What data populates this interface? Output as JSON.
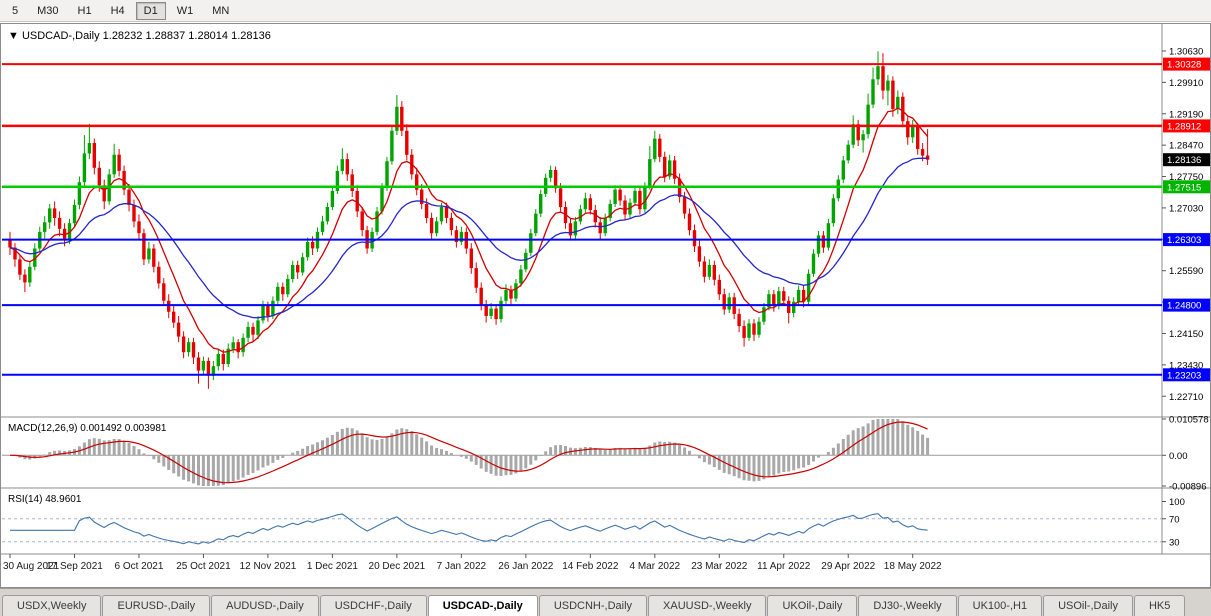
{
  "window": {
    "dropdown_glyph": "▼",
    "title_symbol": "USDCAD-,Daily",
    "title_ohlc": "1.28232 1.28837 1.28014 1.28136"
  },
  "toolbar": {
    "timeframes": [
      {
        "label": "5"
      },
      {
        "label": "M30"
      },
      {
        "label": "H1"
      },
      {
        "label": "H4"
      },
      {
        "label": "D1",
        "active": true
      },
      {
        "label": "W1"
      },
      {
        "label": "MN"
      }
    ]
  },
  "tabs": {
    "items": [
      {
        "label": "USDX,Weekly"
      },
      {
        "label": "EURUSD-,Daily"
      },
      {
        "label": "AUDUSD-,Daily"
      },
      {
        "label": "USDCHF-,Daily"
      },
      {
        "label": "USDCAD-,Daily",
        "active": true
      },
      {
        "label": "USDCNH-,Daily"
      },
      {
        "label": "XAUUSD-,Weekly"
      },
      {
        "label": "UKOil-,Daily"
      },
      {
        "label": "DJ30-,Weekly"
      },
      {
        "label": "UK100-,H1"
      },
      {
        "label": "USOil-,Daily"
      },
      {
        "label": "HK5"
      }
    ]
  },
  "chart_data": {
    "type": "candlestick",
    "symbol": "USDCAD-,Daily",
    "last_ohlc": {
      "open": "1.28232",
      "high": "1.28837",
      "low": "1.28014",
      "close": "1.28136"
    },
    "colors": {
      "up": "#00a400",
      "down": "#e60000",
      "macd_hist": "#a8a8a8",
      "macd_signal": "#cc0000",
      "rsi_line": "#3f74ad"
    },
    "y_axis": {
      "price_max": 1.3118,
      "price_min": 1.2228,
      "ticks": [
        "1.30630",
        "1.29910",
        "1.29190",
        "1.28470",
        "1.27750",
        "1.27030",
        "1.26310",
        "1.25590",
        "1.24870",
        "1.24150",
        "1.23430",
        "1.22710"
      ]
    },
    "x_axis": {
      "labels": [
        {
          "text": "30 Aug 2021",
          "bar": 0
        },
        {
          "text": "17 Sep 2021",
          "bar": 13
        },
        {
          "text": "6 Oct 2021",
          "bar": 26
        },
        {
          "text": "25 Oct 2021",
          "bar": 39
        },
        {
          "text": "12 Nov 2021",
          "bar": 52
        },
        {
          "text": "1 Dec 2021",
          "bar": 65
        },
        {
          "text": "20 Dec 2021",
          "bar": 78
        },
        {
          "text": "7 Jan 2022",
          "bar": 91
        },
        {
          "text": "26 Jan 2022",
          "bar": 104
        },
        {
          "text": "14 Feb 2022",
          "bar": 117
        },
        {
          "text": "4 Mar 2022",
          "bar": 130
        },
        {
          "text": "23 Mar 2022",
          "bar": 143
        },
        {
          "text": "11 Apr 2022",
          "bar": 156
        },
        {
          "text": "29 Apr 2022",
          "bar": 169
        },
        {
          "text": "18 May 2022",
          "bar": 182
        }
      ]
    },
    "horizontal_lines": [
      {
        "price": 1.30328,
        "color": "#ff0000",
        "width": 2
      },
      {
        "price": 1.28912,
        "color": "#ff0000",
        "width": 2.5
      },
      {
        "price": 1.27515,
        "color": "#00cc00",
        "width": 2.5
      },
      {
        "price": 1.26303,
        "color": "#0000ff",
        "width": 2
      },
      {
        "price": 1.248,
        "color": "#0000ff",
        "width": 2
      },
      {
        "price": 1.23203,
        "color": "#0000ff",
        "width": 2
      }
    ],
    "price_labels": [
      {
        "text": "1.30328",
        "price": 1.30328,
        "color": "#ff0000"
      },
      {
        "text": "1.28912",
        "price": 1.28912,
        "color": "#ff0000"
      },
      {
        "text": "1.28136",
        "price": 1.28136,
        "color": "#000000"
      },
      {
        "text": "1.27515",
        "price": 1.27515,
        "color": "#00b400"
      },
      {
        "text": "1.26303",
        "price": 1.26303,
        "color": "#0000ff"
      },
      {
        "text": "1.24800",
        "price": 1.248,
        "color": "#0000ff"
      },
      {
        "text": "1.23203",
        "price": 1.23203,
        "color": "#0000ff"
      }
    ],
    "moving_averages": [
      {
        "name": "fast",
        "type": "ema",
        "period": 9,
        "color": "#d40000"
      },
      {
        "name": "slow",
        "type": "ema",
        "period": 26,
        "color": "#2525cc"
      }
    ],
    "indicators": {
      "macd": {
        "label": "MACD(12,26,9)",
        "values_text": "0.001492 0.003981",
        "params": [
          12,
          26,
          9
        ],
        "axis_labels": [
          "0.010578",
          "0.00",
          "-0.00896"
        ]
      },
      "rsi": {
        "label": "RSI(14)",
        "value_text": "48.9601",
        "period": 14,
        "levels": [
          70,
          30
        ],
        "axis_labels": [
          "100",
          "70",
          "30"
        ]
      }
    },
    "candles": [
      [
        1.263,
        1.2648,
        1.2595,
        1.2612
      ],
      [
        1.2612,
        1.2622,
        1.2568,
        1.2585
      ],
      [
        1.2585,
        1.2596,
        1.2538,
        1.255
      ],
      [
        1.255,
        1.2562,
        1.251,
        1.2532
      ],
      [
        1.2532,
        1.258,
        1.2522,
        1.2568
      ],
      [
        1.2568,
        1.2622,
        1.256,
        1.261
      ],
      [
        1.261,
        1.266,
        1.2602,
        1.2648
      ],
      [
        1.2648,
        1.2684,
        1.2632,
        1.267
      ],
      [
        1.267,
        1.2712,
        1.2655,
        1.2702
      ],
      [
        1.2702,
        1.2718,
        1.2662,
        1.268
      ],
      [
        1.268,
        1.2695,
        1.2638,
        1.2655
      ],
      [
        1.2655,
        1.2668,
        1.2615,
        1.2632
      ],
      [
        1.2632,
        1.2678,
        1.262,
        1.2668
      ],
      [
        1.2668,
        1.2722,
        1.2658,
        1.271
      ],
      [
        1.271,
        1.2775,
        1.27,
        1.2762
      ],
      [
        1.2762,
        1.287,
        1.2752,
        1.2828
      ],
      [
        1.2828,
        1.2896,
        1.2815,
        1.2852
      ],
      [
        1.2852,
        1.2862,
        1.278,
        1.2795
      ],
      [
        1.2795,
        1.281,
        1.274,
        1.2755
      ],
      [
        1.2755,
        1.2768,
        1.27,
        1.2718
      ],
      [
        1.2718,
        1.2792,
        1.271,
        1.278
      ],
      [
        1.278,
        1.285,
        1.2772,
        1.2825
      ],
      [
        1.2825,
        1.2838,
        1.2775,
        1.2788
      ],
      [
        1.2788,
        1.28,
        1.2732,
        1.2745
      ],
      [
        1.2745,
        1.2758,
        1.2695,
        1.271
      ],
      [
        1.271,
        1.2722,
        1.2658,
        1.2672
      ],
      [
        1.2672,
        1.2688,
        1.263,
        1.2645
      ],
      [
        1.2645,
        1.2655,
        1.2572,
        1.2585
      ],
      [
        1.2585,
        1.2625,
        1.2575,
        1.261
      ],
      [
        1.261,
        1.262,
        1.2555,
        1.2568
      ],
      [
        1.2568,
        1.258,
        1.2518,
        1.253
      ],
      [
        1.253,
        1.2542,
        1.2478,
        1.249
      ],
      [
        1.249,
        1.2505,
        1.245,
        1.2465
      ],
      [
        1.2465,
        1.2478,
        1.2428,
        1.244
      ],
      [
        1.244,
        1.2455,
        1.2395,
        1.2408
      ],
      [
        1.2408,
        1.242,
        1.2358,
        1.2372
      ],
      [
        1.2372,
        1.2405,
        1.2362,
        1.2395
      ],
      [
        1.2395,
        1.2405,
        1.2345,
        1.236
      ],
      [
        1.236,
        1.2372,
        1.23,
        1.233
      ],
      [
        1.233,
        1.2362,
        1.232,
        1.2352
      ],
      [
        1.2352,
        1.236,
        1.2288,
        1.2318
      ],
      [
        1.2318,
        1.2352,
        1.2308,
        1.234
      ],
      [
        1.234,
        1.238,
        1.233,
        1.2368
      ],
      [
        1.2368,
        1.2378,
        1.233,
        1.2345
      ],
      [
        1.2345,
        1.2392,
        1.2338,
        1.238
      ],
      [
        1.238,
        1.2408,
        1.237,
        1.2395
      ],
      [
        1.2395,
        1.2402,
        1.2358,
        1.2372
      ],
      [
        1.2372,
        1.2415,
        1.2362,
        1.2405
      ],
      [
        1.2405,
        1.2442,
        1.2395,
        1.243
      ],
      [
        1.243,
        1.244,
        1.2398,
        1.2412
      ],
      [
        1.2412,
        1.2455,
        1.2402,
        1.2445
      ],
      [
        1.2445,
        1.249,
        1.2438,
        1.2478
      ],
      [
        1.2478,
        1.2488,
        1.2442,
        1.2455
      ],
      [
        1.2455,
        1.25,
        1.2448,
        1.249
      ],
      [
        1.249,
        1.2532,
        1.2482,
        1.2522
      ],
      [
        1.2522,
        1.2532,
        1.249,
        1.2505
      ],
      [
        1.2505,
        1.255,
        1.2498,
        1.254
      ],
      [
        1.254,
        1.2582,
        1.2532,
        1.2572
      ],
      [
        1.2572,
        1.2582,
        1.254,
        1.2555
      ],
      [
        1.2555,
        1.26,
        1.2548,
        1.259
      ],
      [
        1.259,
        1.2635,
        1.2582,
        1.2625
      ],
      [
        1.2625,
        1.2638,
        1.2595,
        1.261
      ],
      [
        1.261,
        1.2658,
        1.2602,
        1.2648
      ],
      [
        1.2648,
        1.2685,
        1.264,
        1.2672
      ],
      [
        1.2672,
        1.2715,
        1.2665,
        1.2705
      ],
      [
        1.2705,
        1.2752,
        1.2698,
        1.2742
      ],
      [
        1.2742,
        1.28,
        1.2735,
        1.2788
      ],
      [
        1.2788,
        1.284,
        1.278,
        1.2815
      ],
      [
        1.2815,
        1.2828,
        1.2765,
        1.278
      ],
      [
        1.278,
        1.2792,
        1.2728,
        1.2742
      ],
      [
        1.2742,
        1.2755,
        1.2682,
        1.2695
      ],
      [
        1.2695,
        1.2705,
        1.2638,
        1.2652
      ],
      [
        1.2652,
        1.2662,
        1.2598,
        1.261
      ],
      [
        1.261,
        1.2658,
        1.2602,
        1.2648
      ],
      [
        1.2648,
        1.2705,
        1.264,
        1.2695
      ],
      [
        1.2695,
        1.276,
        1.2688,
        1.275
      ],
      [
        1.275,
        1.282,
        1.2742,
        1.281
      ],
      [
        1.281,
        1.2892,
        1.2802,
        1.288
      ],
      [
        1.288,
        1.2962,
        1.287,
        1.2935
      ],
      [
        1.2935,
        1.2948,
        1.2868,
        1.288
      ],
      [
        1.288,
        1.2895,
        1.2812,
        1.2825
      ],
      [
        1.2825,
        1.2838,
        1.2768,
        1.278
      ],
      [
        1.278,
        1.2795,
        1.2732,
        1.2745
      ],
      [
        1.2745,
        1.2758,
        1.27,
        1.2712
      ],
      [
        1.2712,
        1.2725,
        1.2668,
        1.268
      ],
      [
        1.268,
        1.2692,
        1.2632,
        1.2645
      ],
      [
        1.2645,
        1.2682,
        1.2638,
        1.2672
      ],
      [
        1.2672,
        1.2715,
        1.2665,
        1.2705
      ],
      [
        1.2705,
        1.2715,
        1.2668,
        1.268
      ],
      [
        1.268,
        1.2692,
        1.264,
        1.2652
      ],
      [
        1.2652,
        1.2662,
        1.2612,
        1.2625
      ],
      [
        1.2625,
        1.266,
        1.2618,
        1.2648
      ],
      [
        1.2648,
        1.2658,
        1.2598,
        1.261
      ],
      [
        1.261,
        1.2622,
        1.2552,
        1.2565
      ],
      [
        1.2565,
        1.2578,
        1.2508,
        1.252
      ],
      [
        1.252,
        1.2532,
        1.2468,
        1.248
      ],
      [
        1.248,
        1.2492,
        1.244,
        1.2455
      ],
      [
        1.2455,
        1.2485,
        1.2448,
        1.2472
      ],
      [
        1.2472,
        1.2482,
        1.2435,
        1.2448
      ],
      [
        1.2448,
        1.25,
        1.244,
        1.249
      ],
      [
        1.249,
        1.2528,
        1.2482,
        1.2515
      ],
      [
        1.2515,
        1.2525,
        1.2482,
        1.2495
      ],
      [
        1.2495,
        1.254,
        1.2488,
        1.253
      ],
      [
        1.253,
        1.2572,
        1.2522,
        1.2562
      ],
      [
        1.2562,
        1.261,
        1.2555,
        1.26
      ],
      [
        1.26,
        1.2655,
        1.2592,
        1.2645
      ],
      [
        1.2645,
        1.27,
        1.2638,
        1.269
      ],
      [
        1.269,
        1.2745,
        1.2682,
        1.2735
      ],
      [
        1.2735,
        1.2782,
        1.2728,
        1.2772
      ],
      [
        1.2772,
        1.28,
        1.2762,
        1.279
      ],
      [
        1.279,
        1.2798,
        1.2738,
        1.2748
      ],
      [
        1.2748,
        1.276,
        1.2695,
        1.2705
      ],
      [
        1.2705,
        1.2718,
        1.2655,
        1.2668
      ],
      [
        1.2668,
        1.268,
        1.2628,
        1.264
      ],
      [
        1.264,
        1.2682,
        1.2632,
        1.2672
      ],
      [
        1.2672,
        1.271,
        1.2665,
        1.27
      ],
      [
        1.27,
        1.2738,
        1.2692,
        1.2725
      ],
      [
        1.2725,
        1.2735,
        1.2688,
        1.2698
      ],
      [
        1.2698,
        1.271,
        1.2658,
        1.267
      ],
      [
        1.267,
        1.2682,
        1.2632,
        1.2645
      ],
      [
        1.2645,
        1.269,
        1.2638,
        1.268
      ],
      [
        1.268,
        1.2722,
        1.2672,
        1.2712
      ],
      [
        1.2712,
        1.2755,
        1.2705,
        1.2745
      ],
      [
        1.2745,
        1.2755,
        1.2708,
        1.272
      ],
      [
        1.272,
        1.2732,
        1.2675,
        1.2688
      ],
      [
        1.2688,
        1.2725,
        1.268,
        1.2715
      ],
      [
        1.2715,
        1.2752,
        1.2708,
        1.2742
      ],
      [
        1.2742,
        1.2752,
        1.2688,
        1.27
      ],
      [
        1.27,
        1.2762,
        1.2692,
        1.2752
      ],
      [
        1.2752,
        1.2845,
        1.2745,
        1.2815
      ],
      [
        1.2815,
        1.288,
        1.2808,
        1.2862
      ],
      [
        1.2862,
        1.2872,
        1.2808,
        1.282
      ],
      [
        1.282,
        1.2832,
        1.2762,
        1.2775
      ],
      [
        1.2775,
        1.2825,
        1.2768,
        1.2812
      ],
      [
        1.2812,
        1.2822,
        1.2758,
        1.277
      ],
      [
        1.277,
        1.2782,
        1.2715,
        1.2728
      ],
      [
        1.2728,
        1.274,
        1.2678,
        1.269
      ],
      [
        1.269,
        1.2702,
        1.264,
        1.2652
      ],
      [
        1.2652,
        1.2665,
        1.2602,
        1.2615
      ],
      [
        1.2615,
        1.2628,
        1.2568,
        1.258
      ],
      [
        1.258,
        1.2592,
        1.2532,
        1.2545
      ],
      [
        1.2545,
        1.2585,
        1.2538,
        1.2572
      ],
      [
        1.2572,
        1.2582,
        1.2525,
        1.2538
      ],
      [
        1.2538,
        1.255,
        1.2492,
        1.2505
      ],
      [
        1.2505,
        1.2518,
        1.2458,
        1.247
      ],
      [
        1.247,
        1.2508,
        1.2462,
        1.2498
      ],
      [
        1.2498,
        1.2508,
        1.2448,
        1.246
      ],
      [
        1.246,
        1.2472,
        1.2418,
        1.2432
      ],
      [
        1.2432,
        1.2445,
        1.2385,
        1.2405
      ],
      [
        1.2405,
        1.2448,
        1.2398,
        1.2438
      ],
      [
        1.2438,
        1.2448,
        1.2398,
        1.2412
      ],
      [
        1.2412,
        1.2452,
        1.2405,
        1.2442
      ],
      [
        1.2442,
        1.2485,
        1.2435,
        1.2475
      ],
      [
        1.2475,
        1.2515,
        1.2468,
        1.2505
      ],
      [
        1.2505,
        1.2515,
        1.2465,
        1.2478
      ],
      [
        1.2478,
        1.2522,
        1.247,
        1.2512
      ],
      [
        1.2512,
        1.2522,
        1.2478,
        1.249
      ],
      [
        1.249,
        1.25,
        1.2438,
        1.2462
      ],
      [
        1.2462,
        1.2498,
        1.2452,
        1.2488
      ],
      [
        1.2488,
        1.2525,
        1.248,
        1.2515
      ],
      [
        1.2515,
        1.2525,
        1.2475,
        1.2488
      ],
      [
        1.2488,
        1.2562,
        1.248,
        1.2552
      ],
      [
        1.2552,
        1.2608,
        1.2545,
        1.2598
      ],
      [
        1.2598,
        1.265,
        1.259,
        1.264
      ],
      [
        1.264,
        1.265,
        1.26,
        1.2612
      ],
      [
        1.2612,
        1.2678,
        1.2605,
        1.2668
      ],
      [
        1.2668,
        1.2735,
        1.266,
        1.2725
      ],
      [
        1.2725,
        1.2778,
        1.2718,
        1.2768
      ],
      [
        1.2768,
        1.2822,
        1.276,
        1.2812
      ],
      [
        1.2812,
        1.2858,
        1.2805,
        1.2848
      ],
      [
        1.2848,
        1.2915,
        1.284,
        1.2895
      ],
      [
        1.2895,
        1.2905,
        1.2845,
        1.2858
      ],
      [
        1.2858,
        1.2882,
        1.283,
        1.2872
      ],
      [
        1.2872,
        1.2965,
        1.2862,
        1.294
      ],
      [
        1.294,
        1.3025,
        1.2932,
        1.2998
      ],
      [
        1.2998,
        1.3062,
        1.2985,
        1.3028
      ],
      [
        1.3028,
        1.3058,
        1.2952,
        1.2972
      ],
      [
        1.2972,
        1.3008,
        1.2938,
        1.2995
      ],
      [
        1.2995,
        1.3005,
        1.2912,
        1.293
      ],
      [
        1.293,
        1.2972,
        1.2918,
        1.2958
      ],
      [
        1.2958,
        1.2968,
        1.2888,
        1.2902
      ],
      [
        1.2902,
        1.2915,
        1.2848,
        1.2865
      ],
      [
        1.2865,
        1.2905,
        1.2852,
        1.289
      ],
      [
        1.289,
        1.2898,
        1.2825,
        1.2838
      ],
      [
        1.2838,
        1.2852,
        1.281,
        1.2823
      ],
      [
        1.28232,
        1.28837,
        1.28014,
        1.28136
      ]
    ]
  }
}
